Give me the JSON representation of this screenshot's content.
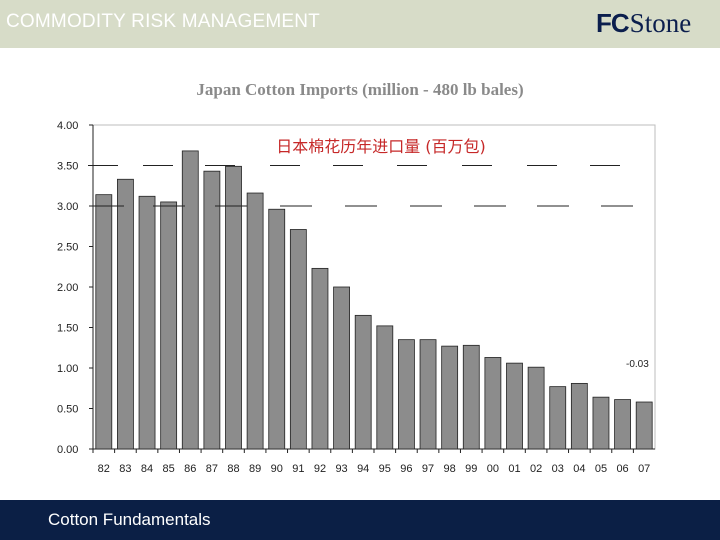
{
  "header": {
    "title": "COMMODITY RISK MANAGEMENT",
    "logo_text_fc": "FC",
    "logo_text_stone": "Stone"
  },
  "footer": {
    "text": "Cotton Fundamentals"
  },
  "colors": {
    "bar": "#8c8c8c",
    "bar_stroke": "#222222",
    "subtitle": "#c62828",
    "top_bar": "#d7dcc8",
    "bottom_bar": "#0b1f45"
  },
  "chart_data": {
    "type": "bar",
    "title": "Japan Cotton Imports (million - 480 lb bales)",
    "subtitle": "日本棉花历年进口量 (百万包)",
    "categories": [
      "82",
      "83",
      "84",
      "85",
      "86",
      "87",
      "88",
      "89",
      "90",
      "91",
      "92",
      "93",
      "94",
      "95",
      "96",
      "97",
      "98",
      "99",
      "00",
      "01",
      "02",
      "03",
      "04",
      "05",
      "06",
      "07"
    ],
    "values": [
      3.14,
      3.33,
      3.12,
      3.05,
      3.68,
      3.43,
      3.49,
      3.16,
      2.96,
      2.71,
      2.23,
      2.0,
      1.65,
      1.52,
      1.35,
      1.35,
      1.27,
      1.28,
      1.13,
      1.06,
      1.01,
      0.77,
      0.81,
      0.64,
      0.61,
      0.58
    ],
    "yticks": [
      "0.00",
      "0.50",
      "1.00",
      "1.50",
      "2.00",
      "2.50",
      "3.00",
      "3.50",
      "4.00"
    ],
    "ylim": [
      0,
      4
    ],
    "annotation": "-0.03",
    "grid": false,
    "xlabel": "",
    "ylabel": ""
  }
}
